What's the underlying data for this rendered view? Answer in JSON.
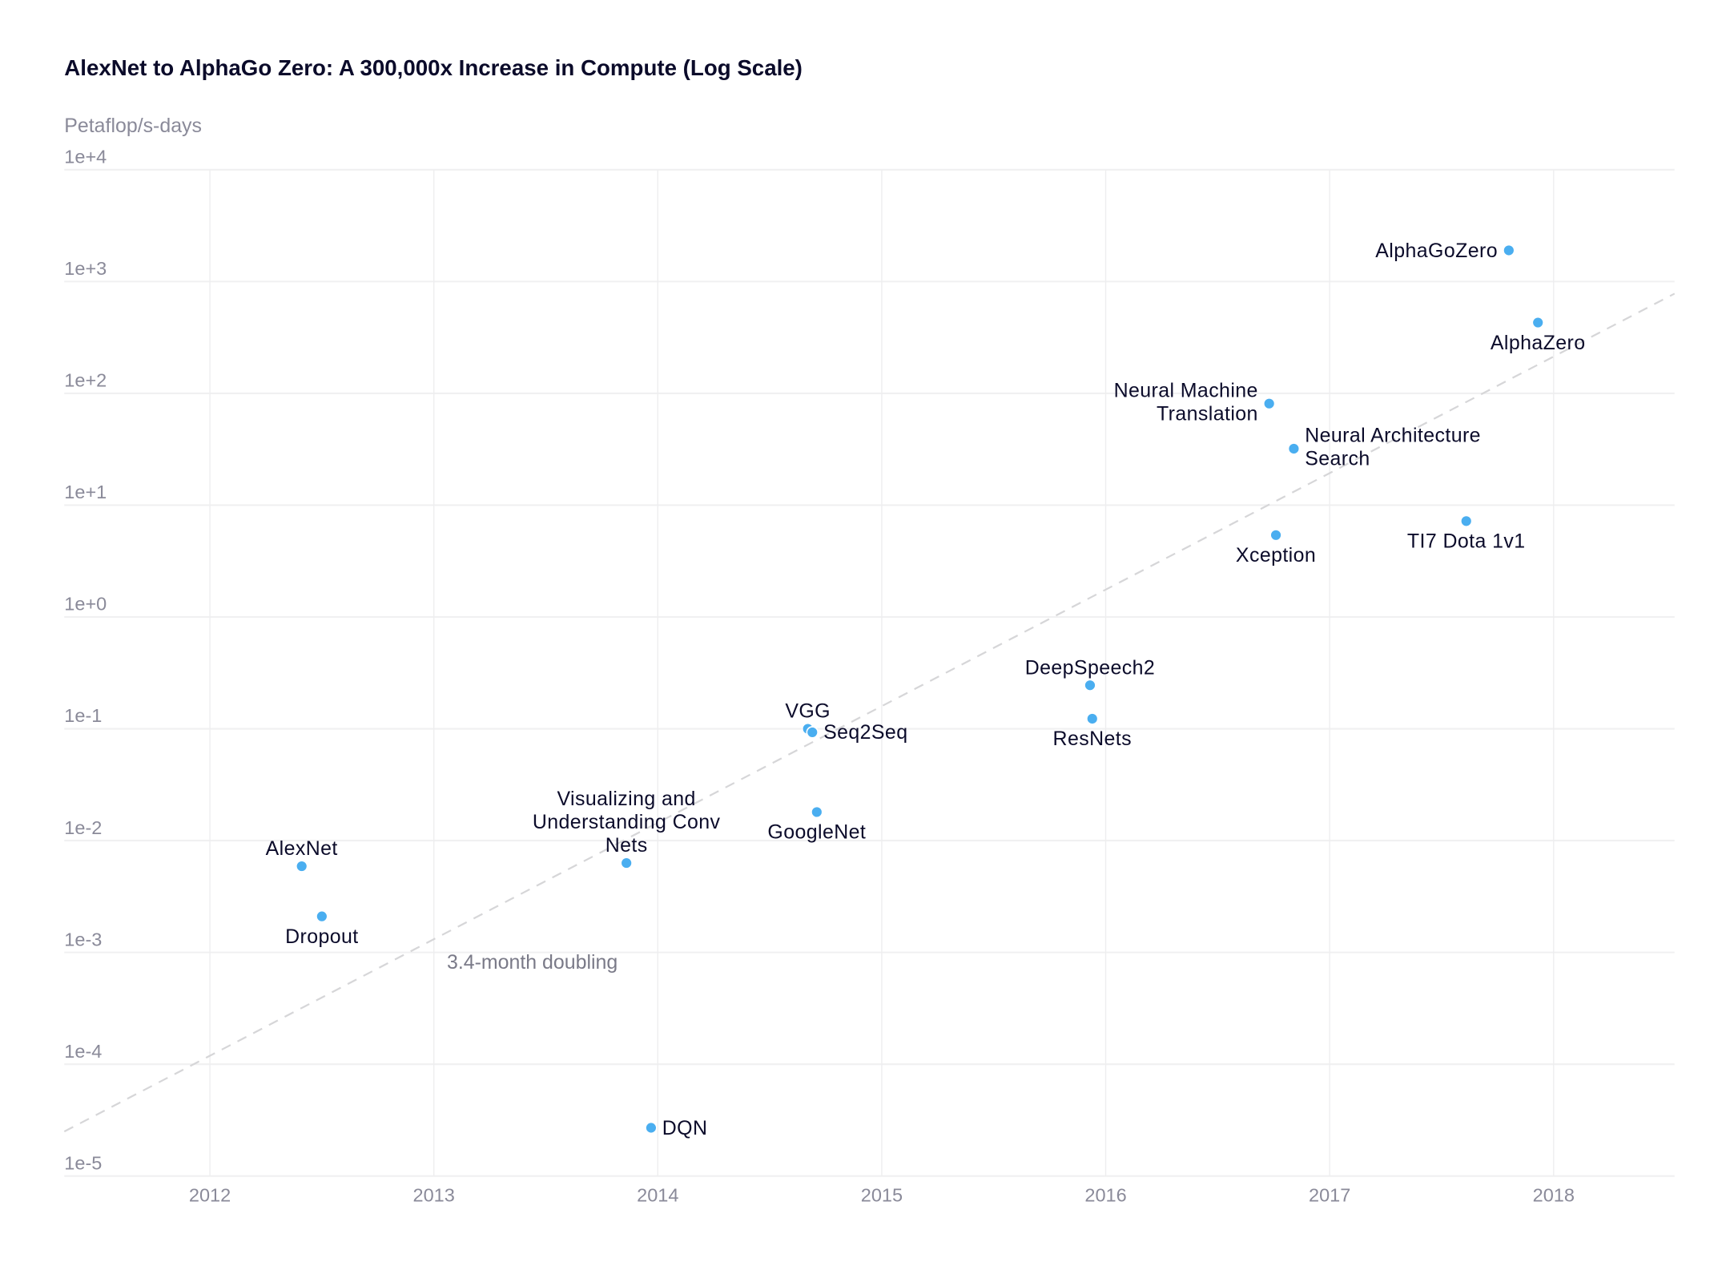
{
  "chart_data": {
    "type": "scatter",
    "title": "AlexNet to AlphaGo Zero: A 300,000x Increase in Compute (Log Scale)",
    "ylabel": "Petaflop/s-days",
    "xlabel": "",
    "yscale": "log",
    "ylim": [
      1e-05,
      10000.0
    ],
    "xlim": [
      2011.35,
      2018.54
    ],
    "grid": true,
    "y_ticks": [
      "1e+4",
      "1e+3",
      "1e+2",
      "1e+1",
      "1e+0",
      "1e-1",
      "1e-2",
      "1e-3",
      "1e-4",
      "1e-5"
    ],
    "x_ticks": [
      "2012",
      "2013",
      "2014",
      "2015",
      "2016",
      "2017",
      "2018"
    ],
    "point_color": "#4aaef0",
    "points": [
      {
        "name": "AlexNet",
        "x": 2012.41,
        "y": 0.0059,
        "label_pos": "above"
      },
      {
        "name": "Dropout",
        "x": 2012.5,
        "y": 0.0021,
        "label_pos": "below"
      },
      {
        "name": "DQN",
        "x": 2013.97,
        "y": 2.7e-05,
        "label_pos": "right"
      },
      {
        "name": "Visualizing and Understanding Conv Nets",
        "lines": [
          "Visualizing and",
          "Understanding Conv",
          "Nets"
        ],
        "x": 2013.86,
        "y": 0.0063,
        "label_pos": "above"
      },
      {
        "name": "GoogleNet",
        "x": 2014.71,
        "y": 0.018,
        "label_pos": "below"
      },
      {
        "name": "VGG",
        "x": 2014.67,
        "y": 0.1,
        "label_pos": "above"
      },
      {
        "name": "Seq2Seq",
        "x": 2014.69,
        "y": 0.093,
        "label_pos": "right"
      },
      {
        "name": "DeepSpeech2",
        "x": 2015.93,
        "y": 0.245,
        "label_pos": "above"
      },
      {
        "name": "ResNets",
        "x": 2015.94,
        "y": 0.123,
        "label_pos": "below"
      },
      {
        "name": "Xception",
        "x": 2016.76,
        "y": 5.4,
        "label_pos": "below"
      },
      {
        "name": "Neural Machine Translation",
        "lines": [
          "Neural Machine",
          "Translation"
        ],
        "x": 2016.73,
        "y": 81,
        "label_pos": "left"
      },
      {
        "name": "Neural Architecture Search",
        "lines": [
          "Neural Architecture",
          "Search"
        ],
        "x": 2016.84,
        "y": 32,
        "label_pos": "right"
      },
      {
        "name": "TI7 Dota 1v1",
        "x": 2017.61,
        "y": 7.2,
        "label_pos": "below"
      },
      {
        "name": "AlphaGoZero",
        "x": 2017.8,
        "y": 1900,
        "label_pos": "left"
      },
      {
        "name": "AlphaZero",
        "x": 2017.93,
        "y": 430,
        "label_pos": "below"
      }
    ],
    "trend_line": {
      "label": "3.4-month doubling",
      "style": "dashed",
      "color": "#d6d6d8",
      "start": {
        "x": 2011.35,
        "y": 2.5e-05
      },
      "end": {
        "x": 2018.54,
        "y": 780
      }
    }
  }
}
